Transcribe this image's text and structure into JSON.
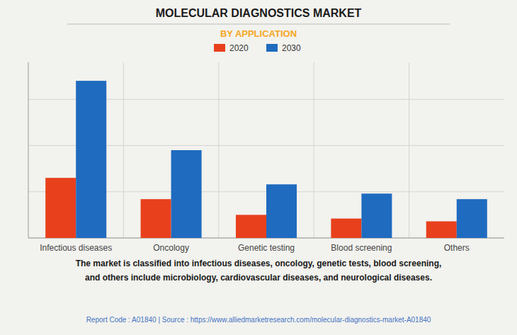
{
  "chart_data": {
    "type": "bar",
    "title": "MOLECULAR DIAGNOSTICS MARKET",
    "subtitle": "BY APPLICATION",
    "categories": [
      "Infectious diseases",
      "Oncology",
      "Genetic testing",
      "Blood screening",
      "Others"
    ],
    "series": [
      {
        "name": "2020",
        "color": "#e8401c",
        "values": [
          6.5,
          4.2,
          2.5,
          2.1,
          1.8
        ]
      },
      {
        "name": "2030",
        "color": "#1f6bbf",
        "values": [
          17.0,
          9.5,
          5.8,
          4.8,
          4.2
        ]
      }
    ],
    "ylim": [
      0,
      19
    ],
    "yticks": [
      0,
      5,
      10,
      15
    ],
    "grid": true,
    "legend": "top",
    "tick_labels": "x",
    "annotations": [
      "The market is classified into infectious diseases, oncology, genetic tests, blood screening,\nand others include microbiology, cardiovascular diseases, and neurological diseases.",
      "Report Code : A01840  |  Source : https://www.alliedmarketresearch.com/molecular-diagnostics-market-A01840"
    ]
  }
}
